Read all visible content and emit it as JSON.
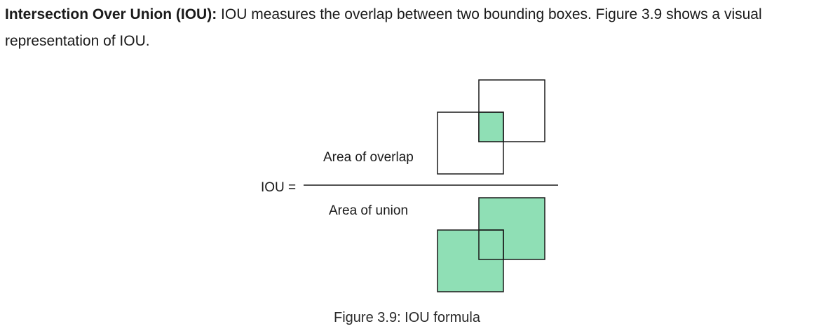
{
  "paragraph": {
    "term": "Intersection Over Union (IOU):",
    "text": " IOU measures the overlap between two bounding boxes. Figure 3.9 shows a visual representation of IOU."
  },
  "figure": {
    "lhs_label": "IOU =",
    "numerator_label": "Area of overlap",
    "denominator_label": "Area of union",
    "fill_color": "#8fdfb5",
    "stroke_color": "#1a1a1a"
  },
  "caption": "Figure 3.9: IOU formula"
}
